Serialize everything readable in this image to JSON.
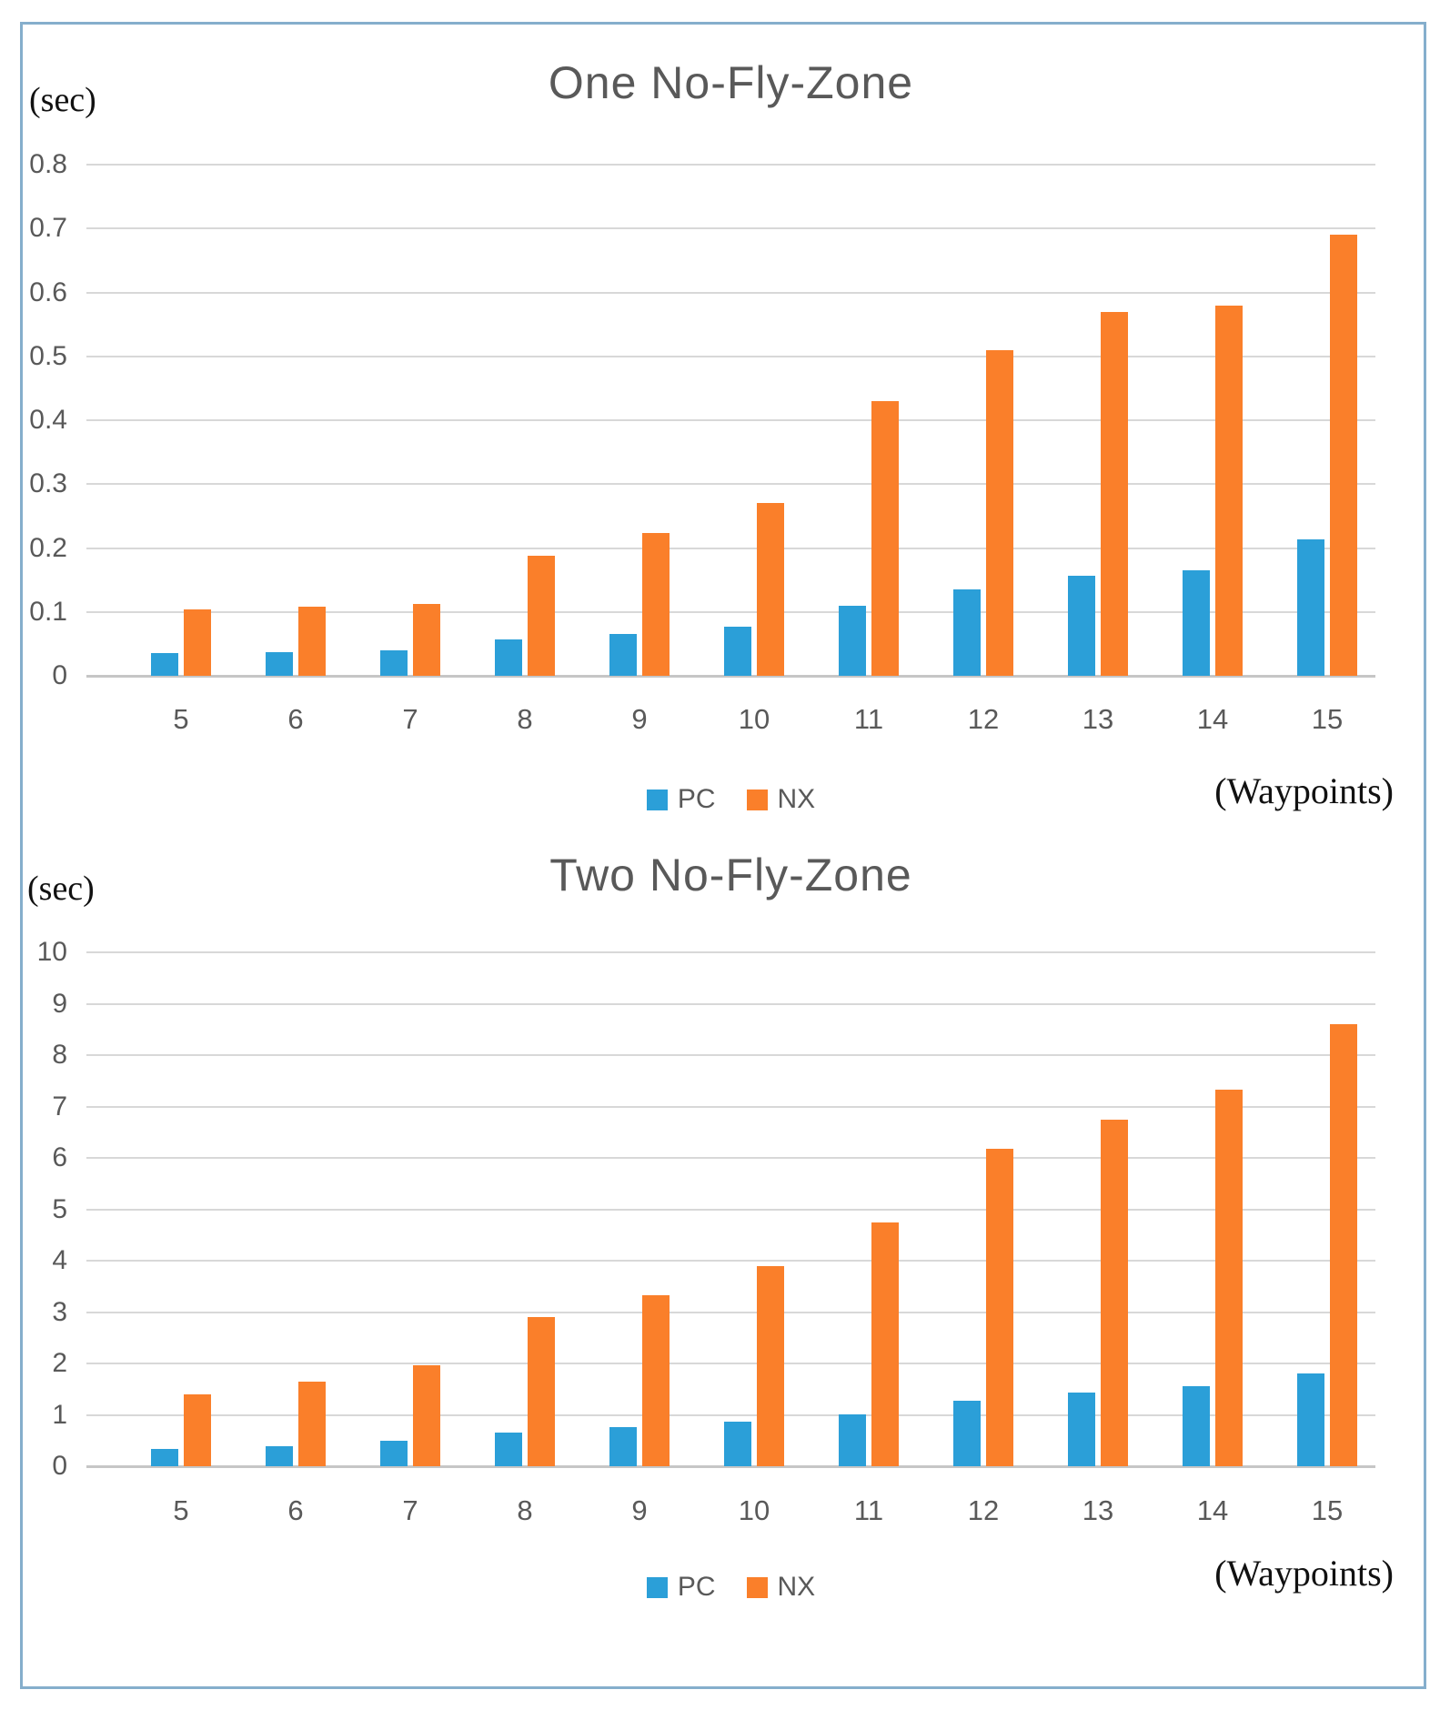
{
  "figure": {
    "frame_border_color": "#85AECC",
    "grid_color": "#D8D8D8",
    "axis_line_color": "#C6C6C6",
    "text_gray": "#595959"
  },
  "chart_data": [
    {
      "type": "bar",
      "title": "One No-Fly-Zone",
      "ylabel": "(sec)",
      "xlabel": "(Waypoints)",
      "grid": true,
      "legend_position": "bottom-center",
      "ylim": [
        0,
        0.8
      ],
      "ytick_step": 0.1,
      "yticks": [
        "0.8",
        "0.7",
        "0.6",
        "0.5",
        "0.4",
        "0.3",
        "0.2",
        "0.1",
        "0"
      ],
      "categories": [
        "5",
        "6",
        "7",
        "8",
        "9",
        "10",
        "11",
        "12",
        "13",
        "14",
        "15"
      ],
      "series": [
        {
          "name": "PC",
          "color": "#2B9FD8",
          "values": [
            0.035,
            0.037,
            0.04,
            0.057,
            0.065,
            0.077,
            0.11,
            0.135,
            0.157,
            0.165,
            0.213
          ]
        },
        {
          "name": "NX",
          "color": "#FA7F2A",
          "values": [
            0.104,
            0.108,
            0.113,
            0.188,
            0.224,
            0.27,
            0.43,
            0.51,
            0.57,
            0.58,
            0.69
          ]
        }
      ]
    },
    {
      "type": "bar",
      "title": "Two No-Fly-Zone",
      "ylabel": "(sec)",
      "xlabel": "(Waypoints)",
      "grid": true,
      "legend_position": "bottom-center",
      "ylim": [
        0,
        10
      ],
      "ytick_step": 1,
      "yticks": [
        "10",
        "9",
        "8",
        "7",
        "6",
        "5",
        "4",
        "3",
        "2",
        "1",
        "0"
      ],
      "categories": [
        "5",
        "6",
        "7",
        "8",
        "9",
        "10",
        "11",
        "12",
        "13",
        "14",
        "15"
      ],
      "series": [
        {
          "name": "PC",
          "color": "#2B9FD8",
          "values": [
            0.33,
            0.39,
            0.5,
            0.65,
            0.76,
            0.87,
            1.0,
            1.27,
            1.43,
            1.55,
            1.8
          ]
        },
        {
          "name": "NX",
          "color": "#FA7F2A",
          "values": [
            1.4,
            1.65,
            1.97,
            2.91,
            3.33,
            3.9,
            4.75,
            6.17,
            6.75,
            7.33,
            8.6
          ]
        }
      ]
    }
  ]
}
